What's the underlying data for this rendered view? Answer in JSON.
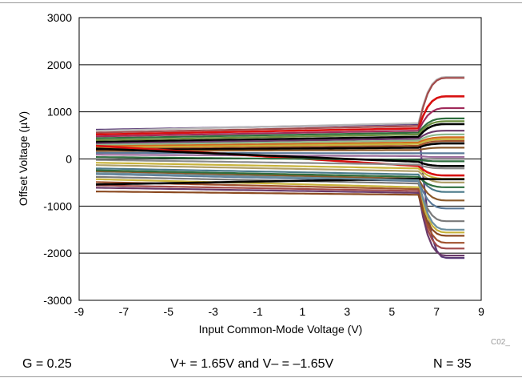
{
  "chart_data": {
    "type": "line",
    "title": "",
    "xlabel": "Input Common-Mode Voltage (V)",
    "ylabel": "Offset Voltage (µV)",
    "xlim": [
      -9,
      9
    ],
    "ylim": [
      -3000,
      3000
    ],
    "xticks": [
      -9,
      -7,
      -5,
      -3,
      -1,
      1,
      3,
      5,
      7,
      9
    ],
    "yticks": [
      -3000,
      -2000,
      -1000,
      0,
      1000,
      2000,
      3000
    ],
    "grid": "horizontal",
    "legend": "none",
    "annotation": "C02_",
    "x_start": -8.25,
    "x_knee": 6.2,
    "x_end": 8.25,
    "series": [
      {
        "color": "#5a3a78",
        "left": 620,
        "knee": 740,
        "right": -2100
      },
      {
        "color": "#b9b9b9",
        "left": 600,
        "knee": 760,
        "right": 1740
      },
      {
        "color": "#a24a4a",
        "left": 560,
        "knee": 700,
        "right": 1720
      },
      {
        "color": "#d81010",
        "left": 520,
        "knee": 650,
        "right": 1330
      },
      {
        "color": "#a02a5a",
        "left": 480,
        "knee": 600,
        "right": 1080
      },
      {
        "color": "#2e6e3e",
        "left": 440,
        "knee": 560,
        "right": 860
      },
      {
        "color": "#6b8e3e",
        "left": 400,
        "knee": 520,
        "right": 800
      },
      {
        "color": "#000000",
        "left": 360,
        "knee": 470,
        "right": 740
      },
      {
        "color": "#6a3a6a",
        "left": 330,
        "knee": 430,
        "right": 600
      },
      {
        "color": "#8fbc8f",
        "left": 300,
        "knee": 390,
        "right": 520
      },
      {
        "color": "#d2691e",
        "left": 270,
        "knee": 350,
        "right": 460
      },
      {
        "color": "#c8b43c",
        "left": 240,
        "knee": 320,
        "right": 420
      },
      {
        "color": "#a0522d",
        "left": 210,
        "knee": 280,
        "right": 380
      },
      {
        "color": "#000000",
        "left": 190,
        "knee": 240,
        "right": 330
      },
      {
        "color": "#8b5a2b",
        "left": 170,
        "knee": 190,
        "right": 240
      },
      {
        "color": "#5b7a99",
        "left": 130,
        "knee": 120,
        "right": 120
      },
      {
        "color": "#9a6a9a",
        "left": 90,
        "knee": 60,
        "right": 40
      },
      {
        "color": "#d81010",
        "left": 280,
        "knee": -150,
        "right": -350
      },
      {
        "color": "#2e6e3e",
        "left": 40,
        "knee": -20,
        "right": -50
      },
      {
        "color": "#000000",
        "left": 220,
        "knee": -60,
        "right": -150
      },
      {
        "color": "#8a8a8a",
        "left": -20,
        "knee": -120,
        "right": -200
      },
      {
        "color": "#c8b43c",
        "left": -80,
        "knee": -200,
        "right": -420
      },
      {
        "color": "#b0a06a",
        "left": -130,
        "knee": -260,
        "right": -500
      },
      {
        "color": "#4a7a8a",
        "left": -200,
        "knee": -330,
        "right": -700
      },
      {
        "color": "#8b5a2b",
        "left": -260,
        "knee": -420,
        "right": -880
      },
      {
        "color": "#5b7a99",
        "left": -320,
        "knee": -470,
        "right": -1050
      },
      {
        "color": "#7a7a7a",
        "left": -380,
        "knee": -520,
        "right": -1320
      },
      {
        "color": "#c8b43c",
        "left": -430,
        "knee": -600,
        "right": -1560
      },
      {
        "color": "#a0522d",
        "left": -490,
        "knee": -640,
        "right": -1780
      },
      {
        "color": "#a24a4a",
        "left": -560,
        "knee": -680,
        "right": -1900
      },
      {
        "color": "#6a3a6a",
        "left": -610,
        "knee": -720,
        "right": -2050
      },
      {
        "color": "#8b4a20",
        "left": -690,
        "knee": -760,
        "right": -1630
      },
      {
        "color": "#2e6e3e",
        "left": -240,
        "knee": -380,
        "right": -600
      },
      {
        "color": "#000000",
        "left": -540,
        "knee": -420,
        "right": -430
      },
      {
        "color": "#6b8e9e",
        "left": -300,
        "knee": -450,
        "right": -1500
      }
    ]
  },
  "conditions": {
    "gain": "G = 0.25",
    "supply": "V+ = 1.65V and V– = –1.65V",
    "count": "N = 35"
  }
}
